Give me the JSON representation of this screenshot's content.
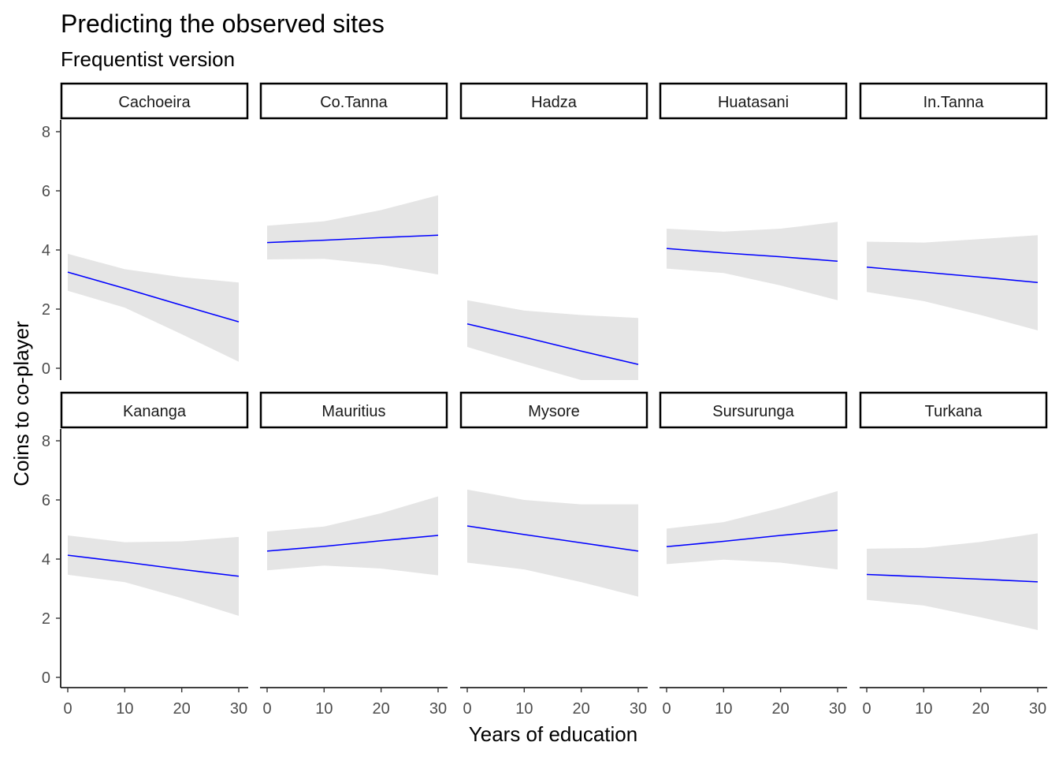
{
  "chart_data": {
    "type": "line",
    "title": "Predicting the observed sites",
    "subtitle": "Frequentist version",
    "xlabel": "Years of education",
    "ylabel": "Coins to co-player",
    "xlim": [
      0,
      30
    ],
    "ylim": [
      0,
      8
    ],
    "x_ticks": [
      0,
      10,
      20,
      30
    ],
    "y_ticks": [
      0,
      2,
      4,
      6,
      8
    ],
    "grid": false,
    "line_color": "#0000ff",
    "ribbon_color": "#e5e5e5",
    "panels": [
      {
        "name": "Cachoeira",
        "x": [
          0,
          10,
          20,
          30
        ],
        "y": [
          3.25,
          2.7,
          2.13,
          1.57
        ],
        "lower": [
          2.62,
          2.05,
          1.15,
          0.22
        ],
        "upper": [
          3.87,
          3.35,
          3.08,
          2.9
        ]
      },
      {
        "name": "Co.Tanna",
        "x": [
          0,
          10,
          20,
          30
        ],
        "y": [
          4.25,
          4.33,
          4.42,
          4.5
        ],
        "lower": [
          3.68,
          3.7,
          3.5,
          3.17
        ],
        "upper": [
          4.82,
          4.97,
          5.35,
          5.85
        ]
      },
      {
        "name": "Hadza",
        "x": [
          0,
          10,
          20,
          30
        ],
        "y": [
          1.5,
          1.05,
          0.58,
          0.13
        ],
        "lower": [
          0.72,
          0.15,
          -0.4,
          -0.4
        ],
        "upper": [
          2.3,
          1.95,
          1.8,
          1.7
        ]
      },
      {
        "name": "Huatasani",
        "x": [
          0,
          10,
          20,
          30
        ],
        "y": [
          4.05,
          3.9,
          3.77,
          3.62
        ],
        "lower": [
          3.37,
          3.22,
          2.8,
          2.3
        ],
        "upper": [
          4.72,
          4.62,
          4.72,
          4.95
        ]
      },
      {
        "name": "In.Tanna",
        "x": [
          0,
          10,
          20,
          30
        ],
        "y": [
          3.42,
          3.25,
          3.08,
          2.9
        ],
        "lower": [
          2.58,
          2.27,
          1.8,
          1.28
        ],
        "upper": [
          4.28,
          4.25,
          4.37,
          4.5
        ]
      },
      {
        "name": "Kananga",
        "x": [
          0,
          10,
          20,
          30
        ],
        "y": [
          4.13,
          3.9,
          3.65,
          3.42
        ],
        "lower": [
          3.47,
          3.22,
          2.68,
          2.08
        ],
        "upper": [
          4.8,
          4.57,
          4.6,
          4.75
        ]
      },
      {
        "name": "Mauritius",
        "x": [
          0,
          10,
          20,
          30
        ],
        "y": [
          4.27,
          4.43,
          4.62,
          4.8
        ],
        "lower": [
          3.62,
          3.78,
          3.68,
          3.45
        ],
        "upper": [
          4.93,
          5.1,
          5.55,
          6.12
        ]
      },
      {
        "name": "Mysore",
        "x": [
          0,
          10,
          20,
          30
        ],
        "y": [
          5.12,
          4.83,
          4.55,
          4.27
        ],
        "lower": [
          3.88,
          3.65,
          3.22,
          2.73
        ],
        "upper": [
          6.35,
          6.0,
          5.85,
          5.85
        ]
      },
      {
        "name": "Sursurunga",
        "x": [
          0,
          10,
          20,
          30
        ],
        "y": [
          4.42,
          4.6,
          4.8,
          4.98
        ],
        "lower": [
          3.83,
          3.98,
          3.88,
          3.65
        ],
        "upper": [
          5.03,
          5.25,
          5.73,
          6.3
        ]
      },
      {
        "name": "Turkana",
        "x": [
          0,
          10,
          20,
          30
        ],
        "y": [
          3.48,
          3.4,
          3.32,
          3.23
        ],
        "lower": [
          2.62,
          2.43,
          2.03,
          1.6
        ],
        "upper": [
          4.35,
          4.38,
          4.58,
          4.87
        ]
      }
    ]
  }
}
